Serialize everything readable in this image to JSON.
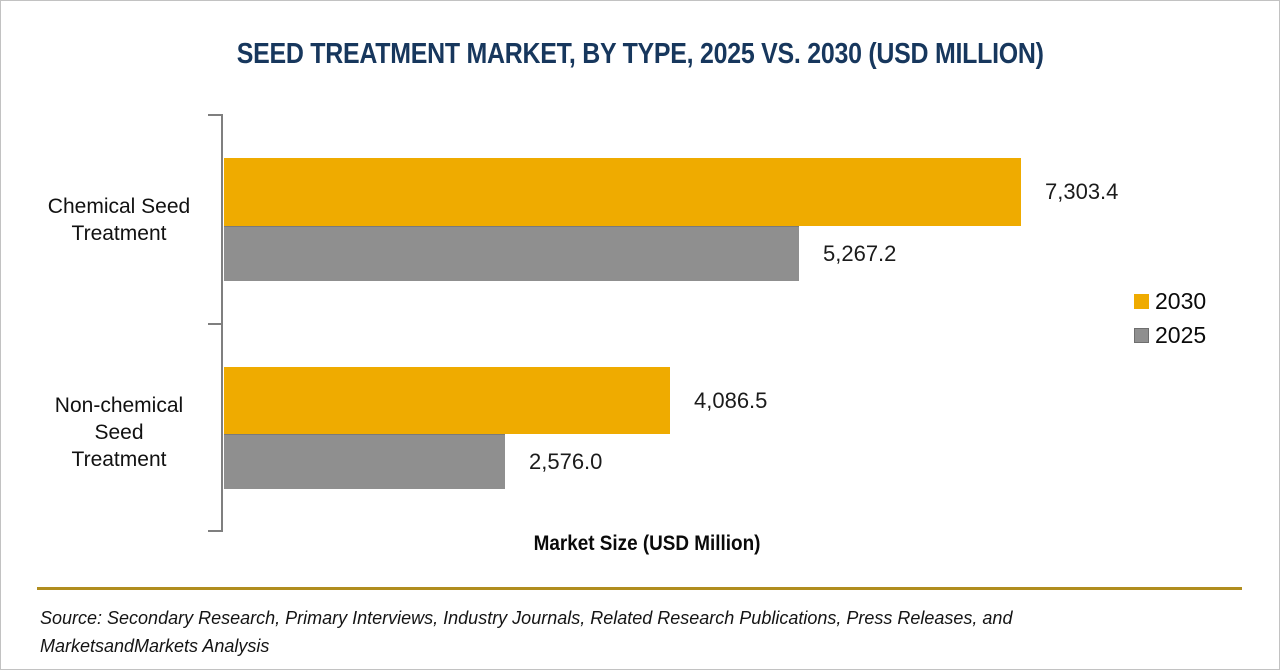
{
  "title": "SEED TREATMENT MARKET, BY TYPE, 2025 VS. 2030 (USD MILLION)",
  "chart_data": {
    "type": "bar",
    "orientation": "horizontal",
    "title": "SEED TREATMENT MARKET, BY TYPE, 2025 VS. 2030 (USD MILLION)",
    "xlabel": "Market Size (USD Million)",
    "categories": [
      "Chemical Seed Treatment",
      "Non-chemical Seed Treatment"
    ],
    "category_lines": [
      [
        "Chemical Seed",
        "Treatment"
      ],
      [
        "Non-chemical",
        "Seed",
        "Treatment"
      ]
    ],
    "series": [
      {
        "name": "2030",
        "color": "#EFAB00",
        "values": [
          7303.4,
          4086.5
        ],
        "value_labels": [
          "7,303.4",
          "4,086.5"
        ]
      },
      {
        "name": "2025",
        "color": "#8F8F8F",
        "values": [
          5267.2,
          2576.0
        ],
        "value_labels": [
          "5,267.2",
          "2,576.0"
        ]
      }
    ],
    "xlim": [
      0,
      7500
    ],
    "grid": false,
    "legend_position": "right"
  },
  "colors": {
    "title": "#17375D",
    "bar_2030": "#EFAB00",
    "bar_2025": "#8F8F8F",
    "axis": "#7F7F7F",
    "divider": "#B08D1E"
  },
  "source": {
    "line1": "Source: Secondary Research, Primary Interviews, Industry Journals, Related Research Publications, Press Releases, and",
    "line2": "MarketsandMarkets Analysis"
  }
}
